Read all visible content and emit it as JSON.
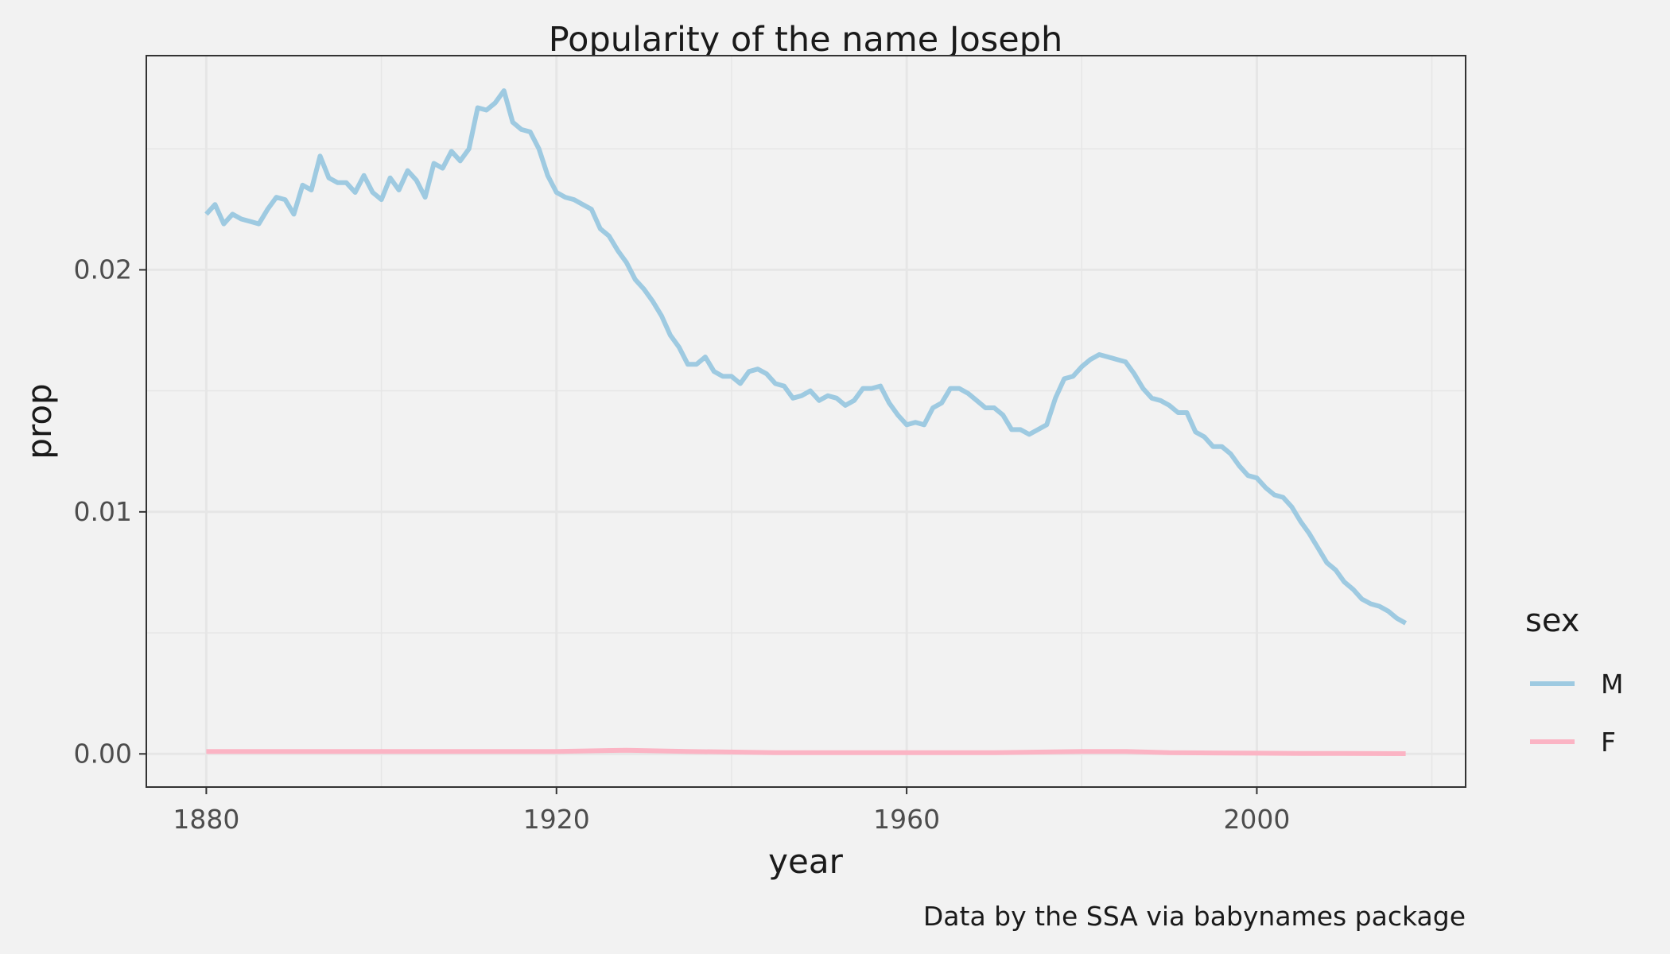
{
  "chart_data": {
    "type": "line",
    "title": "Popularity of the name Joseph",
    "xlabel": "year",
    "ylabel": "prop",
    "caption": "Data by the SSA via babynames package",
    "xlim": [
      1873.15,
      2023.85
    ],
    "ylim": [
      -0.00137,
      0.02885
    ],
    "x_ticks": [
      1880,
      1920,
      1960,
      2000
    ],
    "x_tick_labels": [
      "1880",
      "1920",
      "1960",
      "2000"
    ],
    "x_minor_ticks": [
      1900,
      1940,
      1980,
      2020
    ],
    "y_ticks": [
      0.0,
      0.01,
      0.02
    ],
    "y_tick_labels": [
      "0.00",
      "0.01",
      "0.02"
    ],
    "y_minor_ticks": [
      0.005,
      0.015,
      0.025
    ],
    "grid": true,
    "legend": {
      "title": "sex",
      "position": "right"
    },
    "colors": {
      "background": "#f2f2f2",
      "grid": "#e6e6e6",
      "M": "#9ecae1",
      "F": "#fbb4c4"
    },
    "series": [
      {
        "name": "M",
        "color": "#9ecae1",
        "x": [
          1880,
          1881,
          1882,
          1883,
          1884,
          1885,
          1886,
          1887,
          1888,
          1889,
          1890,
          1891,
          1892,
          1893,
          1894,
          1895,
          1896,
          1897,
          1898,
          1899,
          1900,
          1901,
          1902,
          1903,
          1904,
          1905,
          1906,
          1907,
          1908,
          1909,
          1910,
          1911,
          1912,
          1913,
          1914,
          1915,
          1916,
          1917,
          1918,
          1919,
          1920,
          1921,
          1922,
          1923,
          1924,
          1925,
          1926,
          1927,
          1928,
          1929,
          1930,
          1931,
          1932,
          1933,
          1934,
          1935,
          1936,
          1937,
          1938,
          1939,
          1940,
          1941,
          1942,
          1943,
          1944,
          1945,
          1946,
          1947,
          1948,
          1949,
          1950,
          1951,
          1952,
          1953,
          1954,
          1955,
          1956,
          1957,
          1958,
          1959,
          1960,
          1961,
          1962,
          1963,
          1964,
          1965,
          1966,
          1967,
          1968,
          1969,
          1970,
          1971,
          1972,
          1973,
          1974,
          1975,
          1976,
          1977,
          1978,
          1979,
          1980,
          1981,
          1982,
          1983,
          1984,
          1985,
          1986,
          1987,
          1988,
          1989,
          1990,
          1991,
          1992,
          1993,
          1994,
          1995,
          1996,
          1997,
          1998,
          1999,
          2000,
          2001,
          2002,
          2003,
          2004,
          2005,
          2006,
          2007,
          2008,
          2009,
          2010,
          2011,
          2012,
          2013,
          2014,
          2015,
          2016,
          2017
        ],
        "y": [
          0.0223,
          0.0227,
          0.0219,
          0.0223,
          0.0221,
          0.022,
          0.0219,
          0.0225,
          0.023,
          0.0229,
          0.0223,
          0.0235,
          0.0233,
          0.0247,
          0.0238,
          0.0236,
          0.0236,
          0.0232,
          0.0239,
          0.0232,
          0.0229,
          0.0238,
          0.0233,
          0.0241,
          0.0237,
          0.023,
          0.0244,
          0.0242,
          0.0249,
          0.0245,
          0.025,
          0.0267,
          0.0266,
          0.0269,
          0.0274,
          0.0261,
          0.0258,
          0.0257,
          0.025,
          0.0239,
          0.0232,
          0.023,
          0.0229,
          0.0227,
          0.0225,
          0.0217,
          0.0214,
          0.0208,
          0.0203,
          0.0196,
          0.0192,
          0.0187,
          0.0181,
          0.0173,
          0.0168,
          0.0161,
          0.0161,
          0.0164,
          0.0158,
          0.0156,
          0.0156,
          0.0153,
          0.0158,
          0.0159,
          0.0157,
          0.0153,
          0.0152,
          0.0147,
          0.0148,
          0.015,
          0.0146,
          0.0148,
          0.0147,
          0.0144,
          0.0146,
          0.0151,
          0.0151,
          0.0152,
          0.0145,
          0.014,
          0.0136,
          0.0137,
          0.0136,
          0.0143,
          0.0145,
          0.0151,
          0.0151,
          0.0149,
          0.0146,
          0.0143,
          0.0143,
          0.014,
          0.0134,
          0.0134,
          0.0132,
          0.0134,
          0.0136,
          0.0147,
          0.0155,
          0.0156,
          0.016,
          0.0163,
          0.0165,
          0.0164,
          0.0163,
          0.0162,
          0.0157,
          0.0151,
          0.0147,
          0.0146,
          0.0144,
          0.0141,
          0.0141,
          0.0133,
          0.0131,
          0.0127,
          0.0127,
          0.0124,
          0.0119,
          0.0115,
          0.0114,
          0.011,
          0.0107,
          0.0106,
          0.0102,
          0.0096,
          0.0091,
          0.0085,
          0.0079,
          0.0076,
          0.0071,
          0.0068,
          0.0064,
          0.0062,
          0.0061,
          0.0059,
          0.0056,
          0.0054
        ]
      },
      {
        "name": "F",
        "color": "#fbb4c4",
        "x": [
          1880,
          1890,
          1900,
          1910,
          1920,
          1928,
          1935,
          1945,
          1960,
          1970,
          1980,
          1985,
          1990,
          2000,
          2005,
          2010,
          2017
        ],
        "y": [
          0.0001,
          0.0001,
          0.0001,
          0.0001,
          0.0001,
          0.00015,
          0.0001,
          5e-05,
          5e-05,
          5e-05,
          0.0001,
          0.0001,
          5e-05,
          3e-05,
          2e-05,
          2e-05,
          1e-05
        ]
      }
    ]
  }
}
